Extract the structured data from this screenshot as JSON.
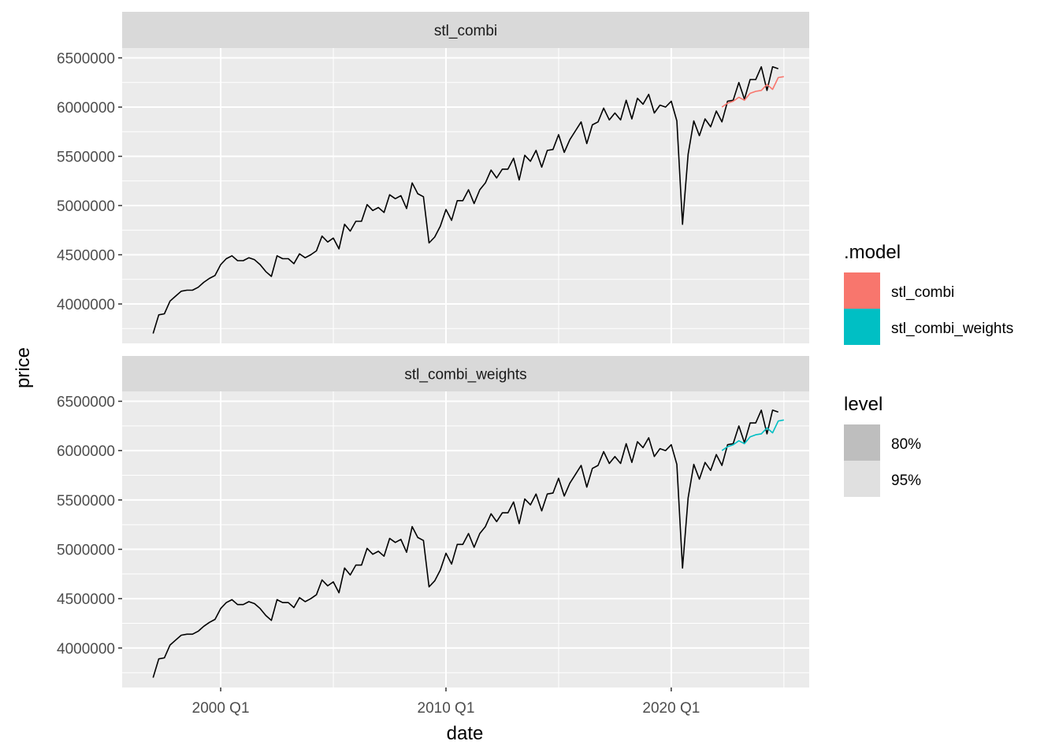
{
  "chart_data": {
    "type": "line",
    "xlabel": "date",
    "ylabel": "price",
    "x_start": "1997 Q1",
    "x_end": "2024 Q4",
    "x_ticks": [
      {
        "value": "2000 Q1",
        "label": "2000 Q1"
      },
      {
        "value": "2010 Q1",
        "label": "2010 Q1"
      },
      {
        "value": "2020 Q1",
        "label": "2020 Q1"
      }
    ],
    "ylim": [
      3600000,
      6600000
    ],
    "y_ticks": [
      {
        "value": 4000000,
        "label": "4000000"
      },
      {
        "value": 4500000,
        "label": "4500000"
      },
      {
        "value": 5000000,
        "label": "5000000"
      },
      {
        "value": 5500000,
        "label": "5500000"
      },
      {
        "value": 6000000,
        "label": "6000000"
      },
      {
        "value": 6500000,
        "label": "6500000"
      }
    ],
    "grid": true,
    "legend_placement": "right",
    "panels": [
      {
        "name": "stl_combi",
        "forecast_color": "#F8766D"
      },
      {
        "name": "stl_combi_weights",
        "forecast_color": "#00BFC4"
      }
    ],
    "actual": [
      3700000,
      3890000,
      3900000,
      4030000,
      4080000,
      4130000,
      4140000,
      4140000,
      4170000,
      4220000,
      4260000,
      4290000,
      4400000,
      4460000,
      4490000,
      4440000,
      4440000,
      4470000,
      4450000,
      4400000,
      4330000,
      4280000,
      4490000,
      4460000,
      4460000,
      4410000,
      4510000,
      4470000,
      4500000,
      4540000,
      4690000,
      4630000,
      4670000,
      4560000,
      4810000,
      4740000,
      4840000,
      4840000,
      5010000,
      4950000,
      4980000,
      4930000,
      5110000,
      5070000,
      5100000,
      4970000,
      5230000,
      5120000,
      5090000,
      4620000,
      4680000,
      4790000,
      4960000,
      4850000,
      5050000,
      5050000,
      5160000,
      5020000,
      5160000,
      5230000,
      5360000,
      5280000,
      5370000,
      5370000,
      5480000,
      5260000,
      5510000,
      5450000,
      5560000,
      5390000,
      5560000,
      5570000,
      5720000,
      5540000,
      5670000,
      5760000,
      5850000,
      5630000,
      5820000,
      5850000,
      5990000,
      5870000,
      5940000,
      5870000,
      6070000,
      5880000,
      6090000,
      6030000,
      6130000,
      5940000,
      6020000,
      6000000,
      6060000,
      5860000,
      4810000,
      5520000,
      5860000,
      5710000,
      5880000,
      5800000,
      5960000,
      5850000,
      6060000,
      6070000,
      6250000,
      6080000,
      6280000,
      6280000,
      6410000,
      6170000,
      6410000,
      6390000
    ],
    "series": [
      {
        "name": "stl_combi",
        "start": "2022 Q2",
        "values": [
          6000000,
          6040000,
          6060000,
          6100000,
          6070000,
          6140000,
          6160000,
          6170000,
          6230000,
          6180000,
          6300000,
          6310000
        ]
      },
      {
        "name": "stl_combi_weights",
        "start": "2022 Q2",
        "values": [
          6000000,
          6040000,
          6060000,
          6100000,
          6070000,
          6140000,
          6160000,
          6170000,
          6230000,
          6180000,
          6300000,
          6310000
        ]
      }
    ],
    "legend": {
      "model_title": ".model",
      "model_items": [
        {
          "label": "stl_combi",
          "color": "#F8766D"
        },
        {
          "label": "stl_combi_weights",
          "color": "#00BFC4"
        }
      ],
      "level_title": "level",
      "level_items": [
        {
          "label": "80%",
          "color": "#BEBEBE"
        },
        {
          "label": "95%",
          "color": "#E0E0E0"
        }
      ]
    }
  }
}
